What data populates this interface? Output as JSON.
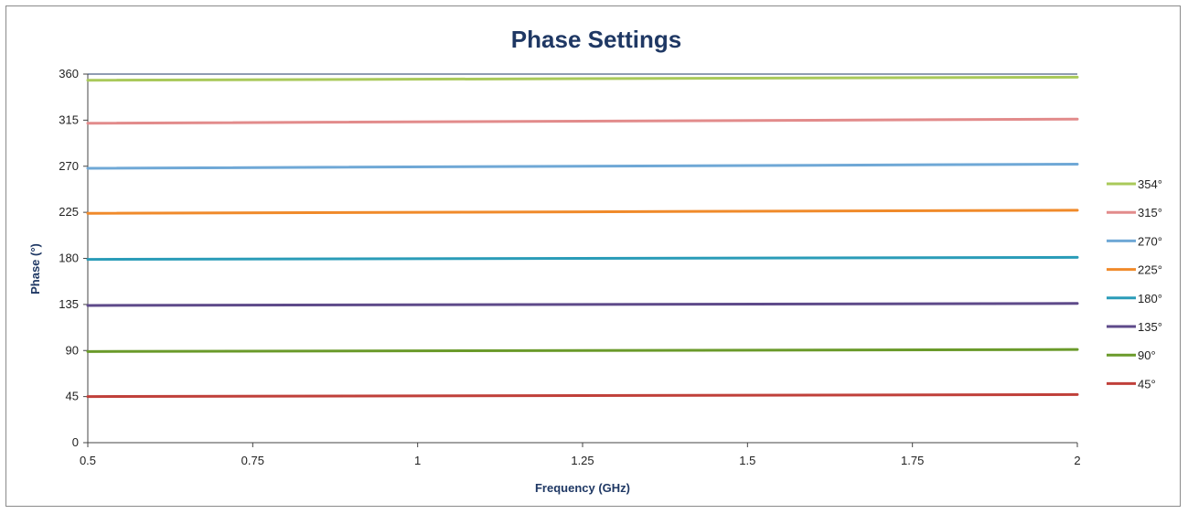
{
  "chart_data": {
    "type": "line",
    "title": "Phase Settings",
    "xlabel": "Frequency (GHz)",
    "ylabel": "Phase (°)",
    "x": [
      0.5,
      2
    ],
    "xlim": [
      0.5,
      2
    ],
    "ylim": [
      0,
      360
    ],
    "xticks": [
      "0.5",
      "0.75",
      "1",
      "1.25",
      "1.5",
      "1.75",
      "2"
    ],
    "yticks": [
      "0",
      "45",
      "90",
      "135",
      "180",
      "225",
      "270",
      "315",
      "360"
    ],
    "grid": false,
    "legend_position": "right",
    "series": [
      {
        "name": "354°",
        "color": "#a9c95a",
        "values": [
          354,
          357
        ]
      },
      {
        "name": "315°",
        "color": "#e28b8b",
        "values": [
          312,
          316
        ]
      },
      {
        "name": "270°",
        "color": "#6fa8d6",
        "values": [
          268,
          272
        ]
      },
      {
        "name": "225°",
        "color": "#f08a2a",
        "values": [
          224,
          227
        ]
      },
      {
        "name": "180°",
        "color": "#2a9cb8",
        "values": [
          179,
          181
        ]
      },
      {
        "name": "135°",
        "color": "#5e4a8a",
        "values": [
          134,
          136
        ]
      },
      {
        "name": "90°",
        "color": "#6a9a2a",
        "values": [
          89,
          91
        ]
      },
      {
        "name": "45°",
        "color": "#c0403a",
        "values": [
          45,
          47
        ]
      }
    ]
  }
}
